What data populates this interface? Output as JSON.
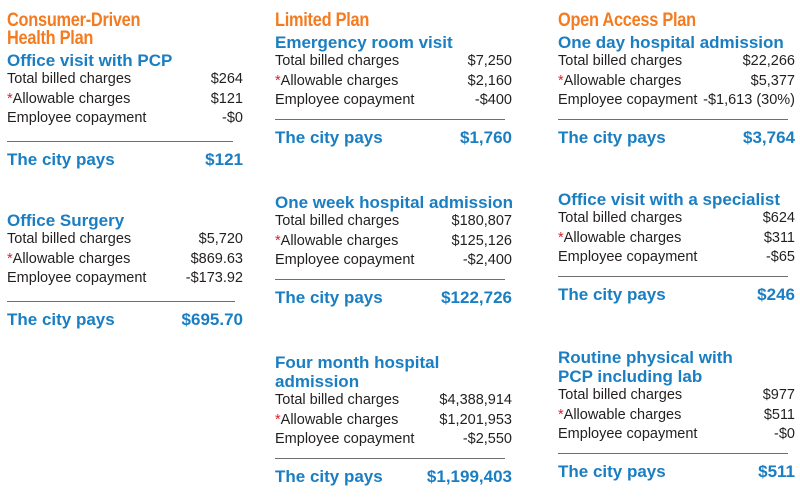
{
  "plans": {
    "cdhp": "Consumer-Driven Health Plan",
    "cdhp_line1": "Consumer-Driven",
    "cdhp_line2": "Health Plan",
    "limited": "Limited Plan",
    "open": "Open Access Plan"
  },
  "labels": {
    "billed": "Total billed charges",
    "allowable": "Allowable charges",
    "copay": "Employee copayment",
    "star": "*",
    "pays": "The city pays"
  },
  "cdhp_pcp": {
    "heading": "Office visit with PCP",
    "billed": "$264",
    "allowable": "$121",
    "copay": "-$0",
    "pays": "$121"
  },
  "cdhp_surgery": {
    "heading": "Office Surgery",
    "billed": "$5,720",
    "allowable": "$869.63",
    "copay": "-$173.92",
    "pays": "$695.70"
  },
  "limited_er": {
    "heading": "Emergency room visit",
    "billed": "$7,250",
    "allowable": "$2,160",
    "copay": "-$400",
    "pays": "$1,760"
  },
  "limited_week": {
    "heading": "One week hospital admission",
    "billed": "$180,807",
    "allowable": "$125,126",
    "copay": "-$2,400",
    "pays": "$122,726"
  },
  "limited_four": {
    "heading_line1": "Four month hospital",
    "heading_line2": "admission",
    "billed": "$4,388,914",
    "allowable": "$1,201,953",
    "copay": "-$2,550",
    "pays": "$1,199,403"
  },
  "open_day": {
    "heading": "One day hospital admission",
    "billed": "$22,266",
    "allowable": "$5,377",
    "copay": "-$1,613 (30%)",
    "pays": "$3,764"
  },
  "open_specialist": {
    "heading": "Office visit with a specialist",
    "billed": "$624",
    "allowable": "$311",
    "copay": "-$65",
    "pays": "$246"
  },
  "open_physical": {
    "heading_line1": "Routine physical with",
    "heading_line2": "PCP including lab",
    "billed": "$977",
    "allowable": "$511",
    "copay": "-$0",
    "pays": "$511"
  }
}
